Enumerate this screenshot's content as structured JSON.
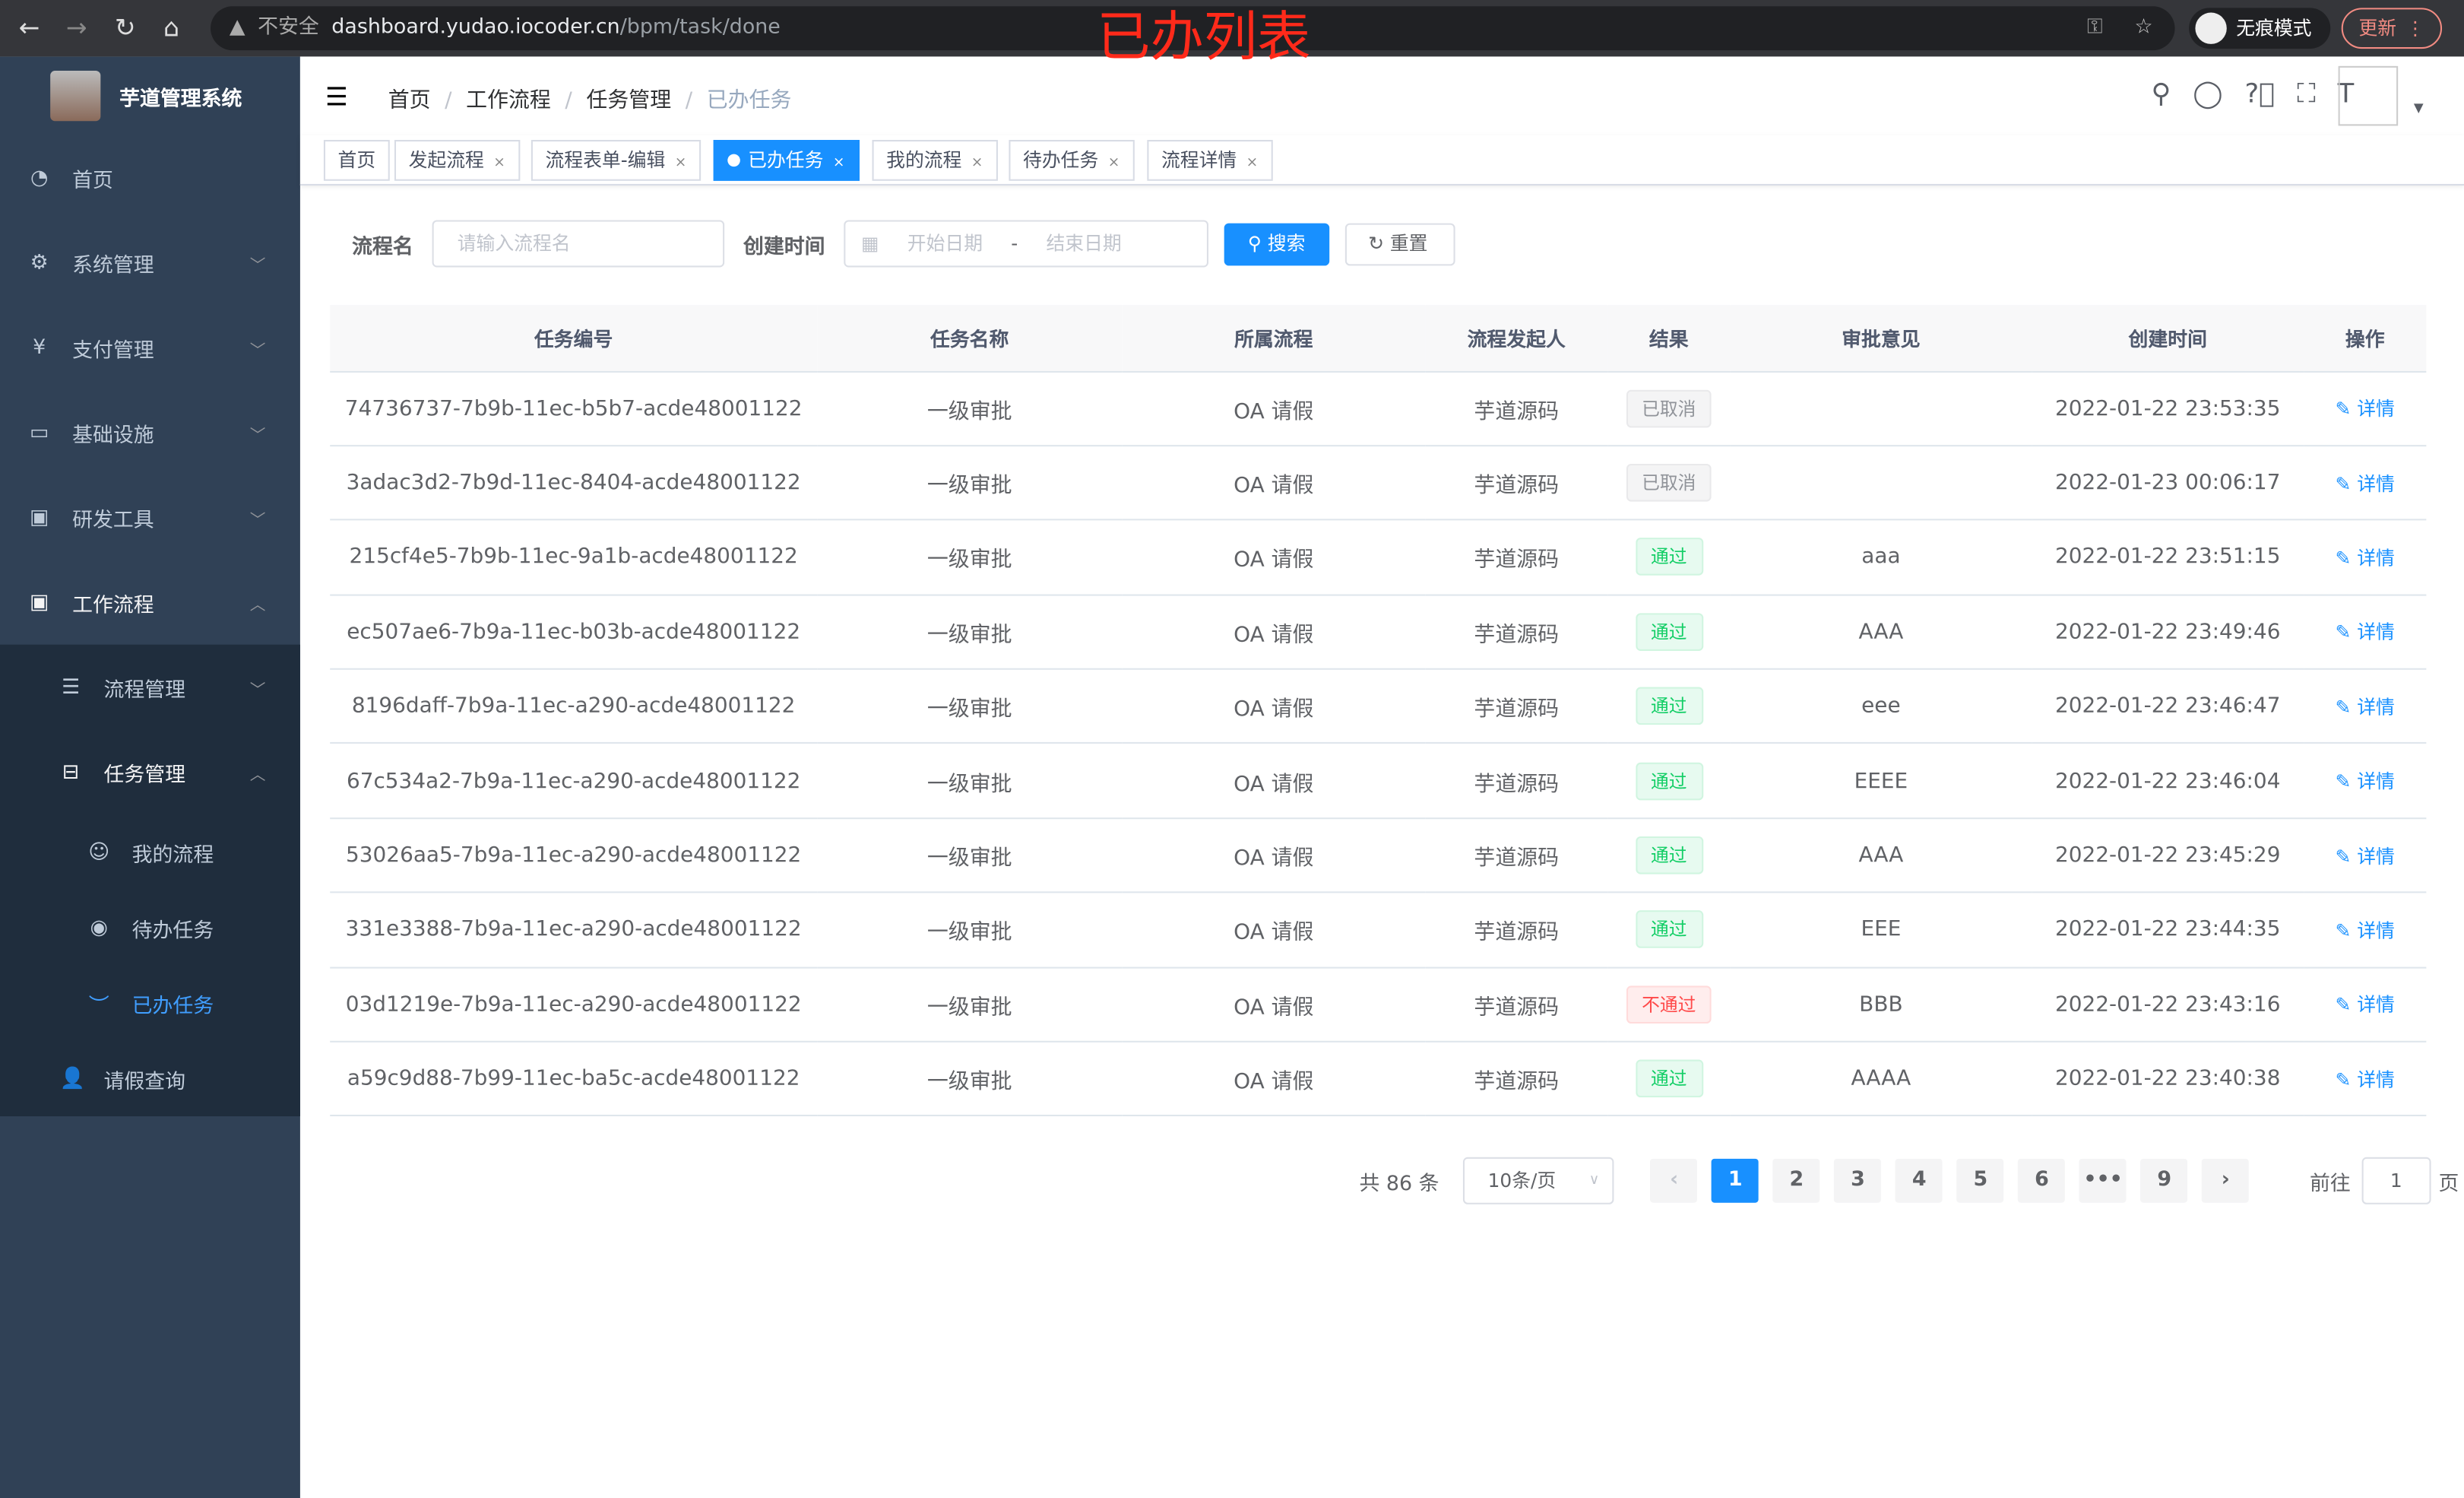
{
  "browser": {
    "insecure": "不安全",
    "url_host": "dashboard.yudao.iocoder.cn",
    "url_path": "/bpm/task/done",
    "incognito": "无痕模式",
    "update": "更新"
  },
  "overlay_title": "已办列表",
  "sidebar": {
    "title": "芋道管理系统",
    "items": [
      {
        "label": "首页",
        "icon": "dashboard-icon"
      },
      {
        "label": "系统管理",
        "icon": "gear-icon"
      },
      {
        "label": "支付管理",
        "icon": "yen-icon"
      },
      {
        "label": "基础设施",
        "icon": "monitor-icon"
      },
      {
        "label": "研发工具",
        "icon": "toolbox-icon"
      },
      {
        "label": "工作流程",
        "icon": "toolbox-icon"
      }
    ],
    "workflow_sub": [
      {
        "label": "流程管理"
      },
      {
        "label": "任务管理"
      }
    ],
    "task_sub": [
      {
        "label": "我的流程"
      },
      {
        "label": "待办任务"
      },
      {
        "label": "已办任务"
      }
    ],
    "leave": "请假查询"
  },
  "breadcrumb": [
    "首页",
    "工作流程",
    "任务管理",
    "已办任务"
  ],
  "tags": [
    "首页",
    "发起流程",
    "流程表单-编辑",
    "已办任务",
    "我的流程",
    "待办任务",
    "流程详情"
  ],
  "search": {
    "name_label": "流程名",
    "name_placeholder": "请输入流程名",
    "time_label": "创建时间",
    "start_placeholder": "开始日期",
    "sep": "-",
    "end_placeholder": "结束日期",
    "search": "搜索",
    "reset": "重置"
  },
  "table": {
    "headers": [
      "任务编号",
      "任务名称",
      "所属流程",
      "流程发起人",
      "结果",
      "审批意见",
      "创建时间",
      "操作"
    ],
    "rows": [
      {
        "id": "74736737-7b9b-11ec-b5b7-acde48001122",
        "name": "一级审批",
        "process": "OA 请假",
        "starter": "芋道源码",
        "result": "已取消",
        "rtype": "cancel",
        "comment": "",
        "time": "2022-01-22 23:53:35",
        "op": "详情"
      },
      {
        "id": "3adac3d2-7b9d-11ec-8404-acde48001122",
        "name": "一级审批",
        "process": "OA 请假",
        "starter": "芋道源码",
        "result": "已取消",
        "rtype": "cancel",
        "comment": "",
        "time": "2022-01-23 00:06:17",
        "op": "详情"
      },
      {
        "id": "215cf4e5-7b9b-11ec-9a1b-acde48001122",
        "name": "一级审批",
        "process": "OA 请假",
        "starter": "芋道源码",
        "result": "通过",
        "rtype": "pass",
        "comment": "aaa",
        "time": "2022-01-22 23:51:15",
        "op": "详情"
      },
      {
        "id": "ec507ae6-7b9a-11ec-b03b-acde48001122",
        "name": "一级审批",
        "process": "OA 请假",
        "starter": "芋道源码",
        "result": "通过",
        "rtype": "pass",
        "comment": "AAA",
        "time": "2022-01-22 23:49:46",
        "op": "详情"
      },
      {
        "id": "8196daff-7b9a-11ec-a290-acde48001122",
        "name": "一级审批",
        "process": "OA 请假",
        "starter": "芋道源码",
        "result": "通过",
        "rtype": "pass",
        "comment": "eee",
        "time": "2022-01-22 23:46:47",
        "op": "详情"
      },
      {
        "id": "67c534a2-7b9a-11ec-a290-acde48001122",
        "name": "一级审批",
        "process": "OA 请假",
        "starter": "芋道源码",
        "result": "通过",
        "rtype": "pass",
        "comment": "EEEE",
        "time": "2022-01-22 23:46:04",
        "op": "详情"
      },
      {
        "id": "53026aa5-7b9a-11ec-a290-acde48001122",
        "name": "一级审批",
        "process": "OA 请假",
        "starter": "芋道源码",
        "result": "通过",
        "rtype": "pass",
        "comment": "AAA",
        "time": "2022-01-22 23:45:29",
        "op": "详情"
      },
      {
        "id": "331e3388-7b9a-11ec-a290-acde48001122",
        "name": "一级审批",
        "process": "OA 请假",
        "starter": "芋道源码",
        "result": "通过",
        "rtype": "pass",
        "comment": "EEE",
        "time": "2022-01-22 23:44:35",
        "op": "详情"
      },
      {
        "id": "03d1219e-7b9a-11ec-a290-acde48001122",
        "name": "一级审批",
        "process": "OA 请假",
        "starter": "芋道源码",
        "result": "不通过",
        "rtype": "fail",
        "comment": "BBB",
        "time": "2022-01-22 23:43:16",
        "op": "详情"
      },
      {
        "id": "a59c9d88-7b99-11ec-ba5c-acde48001122",
        "name": "一级审批",
        "process": "OA 请假",
        "starter": "芋道源码",
        "result": "通过",
        "rtype": "pass",
        "comment": "AAAA",
        "time": "2022-01-22 23:40:38",
        "op": "详情"
      }
    ]
  },
  "pagination": {
    "total": "共 86 条",
    "page_size": "10条/页",
    "pages": [
      "1",
      "2",
      "3",
      "4",
      "5",
      "6",
      "•••",
      "9"
    ],
    "current": "1",
    "goto_label": "前往",
    "goto_value": "1",
    "page_unit": "页"
  },
  "colors": {
    "sidebar": "#304156",
    "accent": "#1890ff",
    "active_menu": "#409eff"
  }
}
